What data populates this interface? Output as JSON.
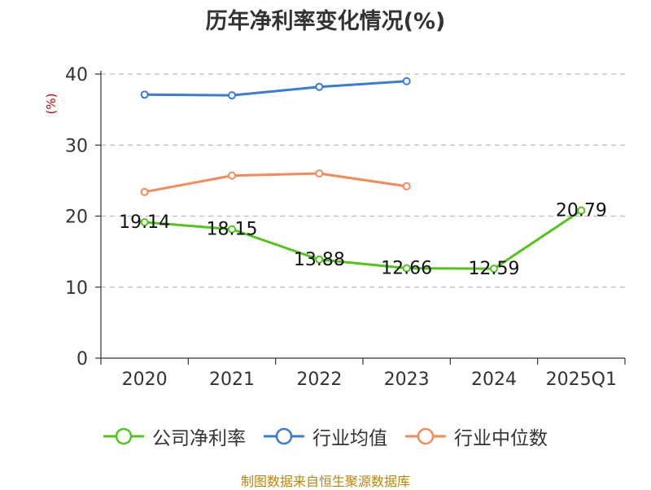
{
  "chart_data": {
    "type": "line",
    "title": "历年净利率变化情况(%)",
    "ylabel": "(%)",
    "xlabel": "",
    "categories": [
      "2020",
      "2021",
      "2022",
      "2023",
      "2024",
      "2025Q1"
    ],
    "ylim": [
      0,
      40
    ],
    "yticks": [
      0,
      10,
      20,
      30,
      40
    ],
    "grid": true,
    "legend_position": "bottom",
    "series": [
      {
        "name": "公司净利率",
        "color": "#52c41a",
        "values": [
          19.14,
          18.15,
          13.88,
          12.66,
          12.59,
          20.79
        ],
        "labels": [
          "19.14",
          "18.15",
          "13.88",
          "12.66",
          "12.59",
          "20.79"
        ]
      },
      {
        "name": "行业均值",
        "color": "#3a7bd5",
        "values": [
          37.1,
          37.0,
          38.2,
          39.0,
          null,
          null
        ]
      },
      {
        "name": "行业中位数",
        "color": "#f5895a",
        "values": [
          23.4,
          25.7,
          26.0,
          24.2,
          null,
          null
        ]
      }
    ]
  },
  "source": "制图数据来自恒生聚源数据库"
}
